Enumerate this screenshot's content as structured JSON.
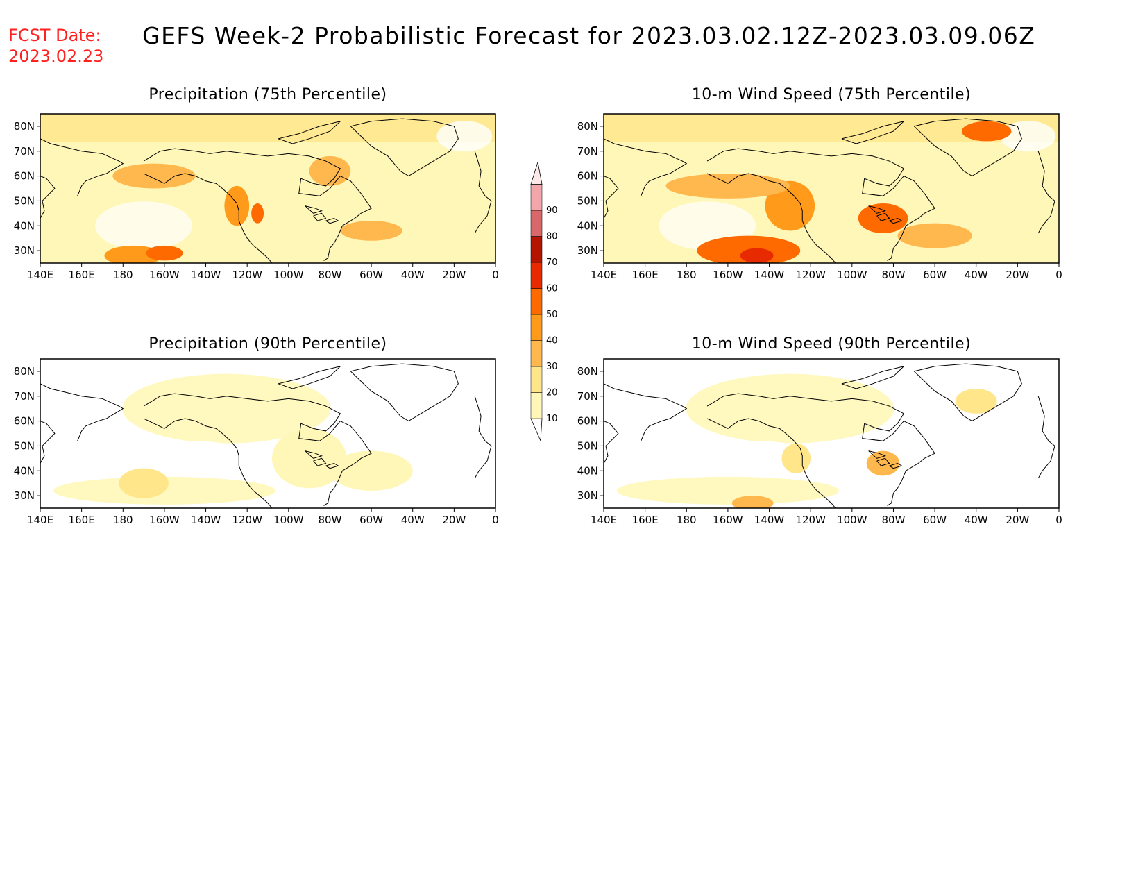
{
  "header": {
    "fcst_label": "FCST Date:",
    "fcst_date": "2023.02.23",
    "title": "GEFS Week-2 Probabilistic Forecast for 2023.03.02.12Z-2023.03.09.06Z"
  },
  "axes": {
    "lon_labels": [
      "140E",
      "160E",
      "180",
      "160W",
      "140W",
      "120W",
      "100W",
      "80W",
      "60W",
      "40W",
      "20W",
      "0"
    ],
    "lat_labels": [
      "80N",
      "70N",
      "60N",
      "50N",
      "40N",
      "30N"
    ]
  },
  "panels": [
    {
      "id": "precip-75",
      "title": "Precipitation (75th Percentile)",
      "intensity": "med",
      "blobs": [
        {
          "lon": 185,
          "lat": 28,
          "rx": 14,
          "ry": 4,
          "level": 40
        },
        {
          "lon": 200,
          "lat": 29,
          "rx": 9,
          "ry": 3,
          "level": 50
        },
        {
          "lon": 235,
          "lat": 48,
          "rx": 6,
          "ry": 8,
          "level": 40
        },
        {
          "lon": 245,
          "lat": 45,
          "rx": 3,
          "ry": 4,
          "level": 50
        },
        {
          "lon": 195,
          "lat": 60,
          "rx": 20,
          "ry": 5,
          "level": 30
        },
        {
          "lon": 300,
          "lat": 38,
          "rx": 15,
          "ry": 4,
          "level": 30
        },
        {
          "lon": 280,
          "lat": 62,
          "rx": 10,
          "ry": 6,
          "level": 30
        }
      ]
    },
    {
      "id": "wind-75",
      "title": "10-m Wind Speed (75th Percentile)",
      "intensity": "high",
      "blobs": [
        {
          "lon": 210,
          "lat": 30,
          "rx": 25,
          "ry": 6,
          "level": 50
        },
        {
          "lon": 214,
          "lat": 28,
          "rx": 8,
          "ry": 3,
          "level": 60
        },
        {
          "lon": 230,
          "lat": 48,
          "rx": 12,
          "ry": 10,
          "level": 40
        },
        {
          "lon": 275,
          "lat": 43,
          "rx": 12,
          "ry": 6,
          "level": 50
        },
        {
          "lon": 200,
          "lat": 56,
          "rx": 30,
          "ry": 5,
          "level": 30
        },
        {
          "lon": 325,
          "lat": 78,
          "rx": 12,
          "ry": 4,
          "level": 50
        },
        {
          "lon": 300,
          "lat": 36,
          "rx": 18,
          "ry": 5,
          "level": 30
        }
      ]
    },
    {
      "id": "precip-90",
      "title": "Precipitation (90th Percentile)",
      "intensity": "low",
      "blobs": [
        {
          "lon": 190,
          "lat": 35,
          "rx": 12,
          "ry": 6,
          "level": 20
        },
        {
          "lon": 270,
          "lat": 45,
          "rx": 18,
          "ry": 12,
          "level": 10
        },
        {
          "lon": 300,
          "lat": 40,
          "rx": 20,
          "ry": 8,
          "level": 10
        }
      ]
    },
    {
      "id": "wind-90",
      "title": "10-m Wind Speed (90th Percentile)",
      "intensity": "low",
      "blobs": [
        {
          "lon": 212,
          "lat": 27,
          "rx": 10,
          "ry": 3,
          "level": 30
        },
        {
          "lon": 233,
          "lat": 45,
          "rx": 7,
          "ry": 6,
          "level": 20
        },
        {
          "lon": 275,
          "lat": 43,
          "rx": 8,
          "ry": 5,
          "level": 30
        },
        {
          "lon": 320,
          "lat": 68,
          "rx": 10,
          "ry": 5,
          "level": 20
        }
      ]
    }
  ],
  "colorbar": {
    "labels": [
      "10",
      "20",
      "30",
      "40",
      "50",
      "60",
      "70",
      "80",
      "90"
    ],
    "colors": [
      "#fff7b8",
      "#ffe68a",
      "#ffb84d",
      "#ff9a1a",
      "#ff6a00",
      "#e82a00",
      "#b41400",
      "#d9686a",
      "#f2a6aa"
    ]
  }
}
